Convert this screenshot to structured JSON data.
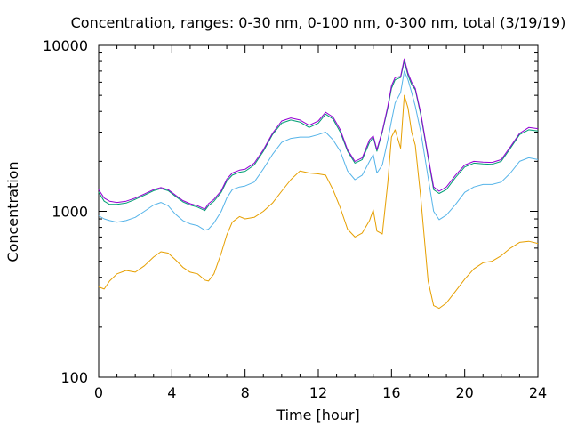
{
  "chart_data": {
    "type": "line",
    "title": "Concentration, ranges: 0-30 nm, 0-100 nm, 0-300 nm, total (3/19/19)",
    "xlabel": "Time [hour]",
    "ylabel": "Concentration",
    "xlim": [
      0,
      24
    ],
    "ylim": [
      100,
      10000
    ],
    "yscale": "log",
    "xticks": [
      0,
      4,
      8,
      12,
      16,
      20,
      24
    ],
    "xtick_labels": [
      "0",
      "4",
      "8",
      "12",
      "16",
      "20",
      "24"
    ],
    "yticks": [
      100,
      1000,
      10000
    ],
    "ytick_labels": [
      "100",
      "1000",
      "10000"
    ],
    "grid": false,
    "legend": "none",
    "x": [
      0,
      0.3,
      0.6,
      1.0,
      1.5,
      2.0,
      2.5,
      3.0,
      3.4,
      3.8,
      4.2,
      4.6,
      5.0,
      5.4,
      5.8,
      6.0,
      6.3,
      6.7,
      7.0,
      7.3,
      7.7,
      8.0,
      8.5,
      9.0,
      9.5,
      10.0,
      10.5,
      11.0,
      11.5,
      12.0,
      12.4,
      12.8,
      13.2,
      13.6,
      14.0,
      14.4,
      14.8,
      15.0,
      15.2,
      15.5,
      15.8,
      16.0,
      16.2,
      16.5,
      16.7,
      16.9,
      17.1,
      17.3,
      17.6,
      18.0,
      18.3,
      18.6,
      19.0,
      19.5,
      20.0,
      20.5,
      21.0,
      21.5,
      22.0,
      22.5,
      23.0,
      23.5,
      24.0
    ],
    "series": [
      {
        "color": "#e69f00",
        "values": [
          350,
          340,
          380,
          420,
          440,
          430,
          470,
          530,
          570,
          560,
          510,
          460,
          430,
          420,
          385,
          380,
          420,
          560,
          720,
          860,
          930,
          900,
          920,
          1000,
          1120,
          1320,
          1550,
          1750,
          1700,
          1680,
          1650,
          1350,
          1050,
          780,
          700,
          740,
          880,
          1020,
          760,
          730,
          1500,
          2800,
          3100,
          2400,
          5000,
          4200,
          3000,
          2500,
          1200,
          380,
          270,
          260,
          280,
          330,
          390,
          450,
          490,
          500,
          540,
          600,
          650,
          660,
          640
        ]
      },
      {
        "color": "#56b4e9",
        "values": [
          940,
          900,
          880,
          860,
          880,
          920,
          1000,
          1090,
          1130,
          1080,
          960,
          880,
          840,
          820,
          770,
          780,
          850,
          1000,
          1200,
          1350,
          1400,
          1420,
          1500,
          1800,
          2200,
          2600,
          2750,
          2800,
          2800,
          2900,
          3000,
          2700,
          2300,
          1750,
          1550,
          1650,
          2000,
          2200,
          1700,
          1900,
          2700,
          3500,
          4500,
          5200,
          7000,
          6200,
          5200,
          4300,
          3000,
          1600,
          1000,
          890,
          950,
          1100,
          1300,
          1400,
          1450,
          1450,
          1500,
          1700,
          2000,
          2100,
          2050
        ]
      },
      {
        "color": "#009e73",
        "values": [
          1300,
          1150,
          1100,
          1100,
          1120,
          1180,
          1250,
          1330,
          1370,
          1330,
          1230,
          1140,
          1090,
          1060,
          1010,
          1080,
          1150,
          1300,
          1520,
          1650,
          1720,
          1740,
          1900,
          2300,
          2900,
          3400,
          3550,
          3450,
          3200,
          3400,
          3850,
          3600,
          3000,
          2300,
          1950,
          2050,
          2600,
          2800,
          2300,
          3000,
          4200,
          5500,
          6200,
          6400,
          8000,
          6600,
          5800,
          5400,
          3800,
          2100,
          1350,
          1280,
          1350,
          1600,
          1850,
          1950,
          1930,
          1920,
          2000,
          2400,
          2900,
          3100,
          3050
        ]
      },
      {
        "color": "#9400d3",
        "values": [
          1350,
          1200,
          1150,
          1130,
          1150,
          1200,
          1270,
          1350,
          1390,
          1350,
          1250,
          1160,
          1110,
          1080,
          1030,
          1110,
          1180,
          1330,
          1560,
          1700,
          1770,
          1790,
          1950,
          2350,
          2950,
          3500,
          3650,
          3550,
          3300,
          3500,
          3950,
          3700,
          3100,
          2350,
          2000,
          2100,
          2700,
          2850,
          2350,
          3050,
          4300,
          5700,
          6400,
          6500,
          8300,
          6800,
          6000,
          5500,
          3900,
          2150,
          1400,
          1320,
          1400,
          1650,
          1900,
          2000,
          1980,
          1970,
          2050,
          2450,
          2950,
          3200,
          3150
        ]
      }
    ]
  }
}
